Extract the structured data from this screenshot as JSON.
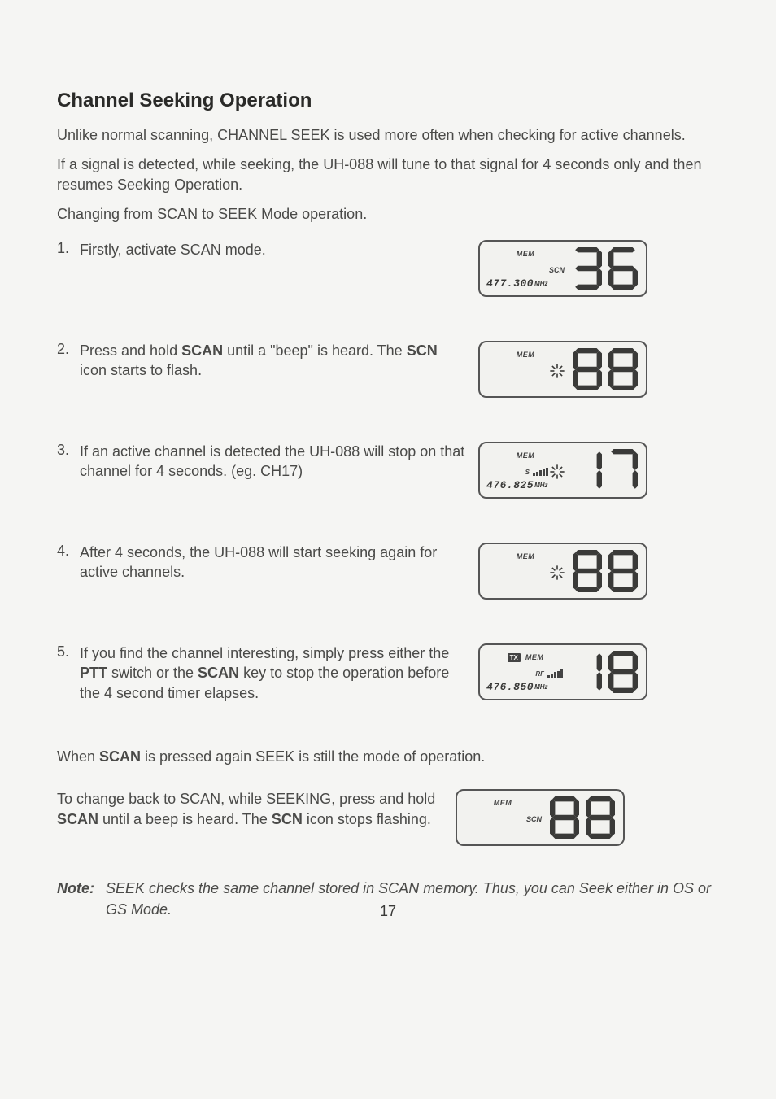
{
  "title": "Channel Seeking Operation",
  "intro1": "Unlike normal scanning, CHANNEL SEEK is used more often when checking for active channels.",
  "intro2": "If a signal is detected, while seeking, the UH-088 will tune to that signal for 4 seconds only and then resumes Seeking Operation.",
  "intro3": "Changing from SCAN to SEEK Mode operation.",
  "steps": [
    {
      "num": "1.",
      "text": "Firstly, activate SCAN mode."
    },
    {
      "num": "2.",
      "html": "Press and hold <b>SCAN</b> until a \"beep\" is heard. The <b>SCN</b> icon starts to flash."
    },
    {
      "num": "3.",
      "text": "If an active channel is detected the UH-088 will stop on that channel for 4 seconds. (eg. CH17)"
    },
    {
      "num": "4.",
      "text": "After 4 seconds, the UH-088 will start seeking again for active channels."
    },
    {
      "num": "5.",
      "html": "If you find the channel interesting, simply press either the <b>PTT</b> switch or the <b>SCAN</b> key to stop the operation before the 4 second timer elapses."
    }
  ],
  "trailing1_html": "When <b>SCAN</b> is pressed again SEEK is still the mode of operation.",
  "trailing2_html": "To change back to SCAN, while SEEKING, press and hold <b>SCAN</b> until a beep is heard. The <b>SCN</b> icon stops flashing.",
  "note_label": "Note:",
  "note_body": "SEEK checks the same channel stored in SCAN memory. Thus, you can Seek either in OS or GS Mode.",
  "page_number": "17",
  "lcd_labels": {
    "mem": "MEM",
    "scn": "SCN",
    "tx": "TX",
    "rf": "RF",
    "s": "S",
    "mhz": "MHz"
  },
  "displays": {
    "d1": {
      "mem": true,
      "scn": "static",
      "freq": "477.300",
      "digits": "36",
      "bigstyle": "dim"
    },
    "d2": {
      "mem": true,
      "scn": "flash",
      "digits": "88",
      "bigstyle": "full"
    },
    "d3": {
      "mem": true,
      "scn": "flash",
      "s": true,
      "bars": 5,
      "freq": "476.825",
      "digits": "17",
      "bigstyle": "solid"
    },
    "d4": {
      "mem": true,
      "scn": "flash",
      "digits": "88",
      "bigstyle": "full-dim"
    },
    "d5": {
      "mem": true,
      "tx": true,
      "rf": true,
      "bars": 5,
      "freq": "476.850",
      "digits": "18",
      "bigstyle": "solid"
    },
    "d6": {
      "mem": true,
      "scn": "static",
      "digits": "88",
      "bigstyle": "full"
    }
  },
  "colors": {
    "fg": "#3a3a38",
    "bg": "#f5f5f3",
    "border": "#555555"
  }
}
